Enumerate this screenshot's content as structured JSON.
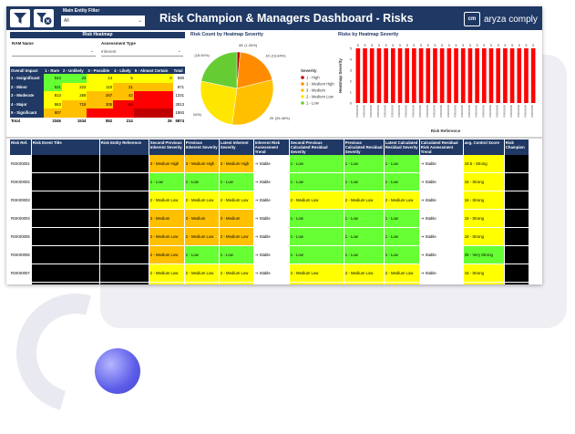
{
  "header": {
    "filter_label": "Main Entity Filter",
    "filter_value": "All",
    "title": "Risk Champion & Managers Dashboard - Risks",
    "logo_mark": "cm",
    "logo_text": "aryza comply"
  },
  "heatmap": {
    "section_title": "Risk Heatmap",
    "ram_label": "RAM Name",
    "assessment_label": "Assessment Type",
    "assessment_value": "Inherent",
    "columns": [
      "Overall Impact",
      "1 - Rare",
      "2 - Unlikely",
      "3 - Possible",
      "4 - Likely",
      "5 - Almost Certain",
      "Total"
    ],
    "rows": [
      {
        "label": "1 - Insignificant",
        "cells": [
          "543",
          "23",
          "14",
          "5",
          "0",
          "590"
        ],
        "colors": [
          "#66ff33",
          "#66ff33",
          "#ffff00",
          "#ffff00",
          "#ffff00",
          "#ffffff"
        ]
      },
      {
        "label": "2 - Minor",
        "cells": [
          "521",
          "223",
          "110",
          "21",
          "",
          "871"
        ],
        "colors": [
          "#66ff33",
          "#ffff00",
          "#ffff00",
          "#ffc000",
          "#ffc000",
          "#ffffff"
        ]
      },
      {
        "label": "3 - Moderate",
        "cells": [
          "813",
          "258",
          "267",
          "42",
          "",
          "1331"
        ],
        "colors": [
          "#ffff00",
          "#ffff00",
          "#ffc000",
          "#ffc000",
          "#ff0000",
          "#ffffff"
        ]
      },
      {
        "label": "4 - Major",
        "cells": [
          "863",
          "715",
          "305",
          "54",
          "",
          "2813"
        ],
        "colors": [
          "#ffff00",
          "#ffc000",
          "#ffc000",
          "#ff0000",
          "#ff0000",
          "#ffffff"
        ]
      },
      {
        "label": "5 - Significant",
        "cells": [
          "607",
          "",
          "",
          "",
          "",
          "1993"
        ],
        "colors": [
          "#ffc000",
          "#ffc000",
          "#ff0000",
          "#ff0000",
          "#c00000",
          "#ffffff"
        ]
      }
    ],
    "total": {
      "label": "Total",
      "cells": [
        "3346",
        "1534",
        "852",
        "214",
        "26",
        "5874"
      ]
    }
  },
  "pie": {
    "section_title": "Risk Count by Heatmap Severity",
    "legend_title": "Severity",
    "legend": [
      {
        "label": "1 - High",
        "color": "#c00000"
      },
      {
        "label": "2 - Medium High",
        "color": "#ff8c00"
      },
      {
        "label": "3 - Medium",
        "color": "#ffc000"
      },
      {
        "label": "2 - Medium Low",
        "color": "#ffe600"
      },
      {
        "label": "1 - Low",
        "color": "#66cc33"
      }
    ],
    "labels": [
      "8K (1.26%)",
      "1K (16.84%)",
      "2K (26.46%)",
      "2K (22.34%)",
      "1K (18.60%)"
    ]
  },
  "chart_data": {
    "type": "pie",
    "title": "Risk Count by Heatmap Severity",
    "legend_title": "Severity",
    "categories": [
      "1 - High",
      "2 - Medium High",
      "3 - Medium",
      "2 - Medium Low",
      "1 - Low"
    ],
    "values": [
      1.26,
      16.84,
      26.46,
      22.34,
      18.6
    ],
    "slice_labels": [
      "8K (1.26%)",
      "1K (16.84%)",
      "2K (26.46%)",
      "2K (22.34%)",
      "1K (18.60%)"
    ]
  },
  "bars": {
    "section_title": "Risks by Heatmap Severity",
    "ylabel": "Heatmap Severity",
    "xlabel": "Risk Reference",
    "value_label": "5",
    "count": 26,
    "category_label": "RSK00000",
    "color": "#ff0000",
    "tick_labels": [
      "5",
      "4",
      "3",
      "2",
      "1",
      "0"
    ]
  },
  "risk_table": {
    "columns": [
      "Risk Ref.",
      "Risk Event Title",
      "Risk Entity Reference",
      "Second Previous Inherent Severity",
      "Previous Inherent Severity",
      "Latest Inherent Severity",
      "Inherent Risk Assessment Trend",
      "Second Previous Calculated Residual Severity",
      "Previous Calculated Residual Severity",
      "Latest Calculated Residual Severity",
      "Calculated Residual Risk Assessment Trend",
      "avg. Control Score",
      "Risk Champion"
    ],
    "rows": [
      {
        "ref": "RSK00001",
        "cells": [
          "3 - Medium High",
          "3 - Medium High",
          "3 - Medium High",
          "Stable",
          "1 - Low",
          "1 - Low",
          "1 - Low",
          "Stable",
          "19.5 - Strong"
        ],
        "colors": [
          "c3",
          "c3",
          "c3",
          "",
          "c1",
          "c1",
          "c1",
          "",
          "cs"
        ]
      },
      {
        "ref": "RSK00002",
        "cells": [
          "1 - Low",
          "1 - Low",
          "1 - Low",
          "Stable",
          "1 - Low",
          "1 - Low",
          "1 - Low",
          "Stable",
          "16 - Strong"
        ],
        "colors": [
          "c1",
          "c1",
          "c1",
          "",
          "c1",
          "c1",
          "c1",
          "",
          "cs"
        ]
      },
      {
        "ref": "RSK00003",
        "cells": [
          "2 - Medium Low",
          "2 - Medium Low",
          "2 - Medium Low",
          "Stable",
          "2 - Medium Low",
          "2 - Medium Low",
          "2 - Medium Low",
          "Stable",
          "16 - Strong"
        ],
        "colors": [
          "c2",
          "c2",
          "c2",
          "",
          "c2",
          "c2",
          "c2",
          "",
          "cs"
        ]
      },
      {
        "ref": "RSK00004",
        "cells": [
          "3 - Medium",
          "3 - Medium",
          "3 - Medium",
          "Stable",
          "1 - Low",
          "1 - Low",
          "1 - Low",
          "Stable",
          "16 - Strong"
        ],
        "colors": [
          "c3",
          "c3",
          "c3",
          "",
          "c1",
          "c1",
          "c1",
          "",
          "cs"
        ]
      },
      {
        "ref": "RSK00005",
        "cells": [
          "2 - Medium Low",
          "2 - Medium Low",
          "2 - Medium Low",
          "Stable",
          "1 - Low",
          "1 - Low",
          "1 - Low",
          "Stable",
          "16 - Strong"
        ],
        "colors": [
          "c3",
          "c3",
          "c3",
          "",
          "c1",
          "c1",
          "c1",
          "",
          "cs"
        ]
      },
      {
        "ref": "RSK00006",
        "cells": [
          "2 - Medium Low",
          "1 - Low",
          "1 - Low",
          "Stable",
          "1 - Low",
          "1 - Low",
          "1 - Low",
          "Stable",
          "25 - Very Strong"
        ],
        "colors": [
          "c3",
          "c1",
          "c1",
          "",
          "c1",
          "c1",
          "c1",
          "",
          "cv"
        ]
      },
      {
        "ref": "RSK00007",
        "cells": [
          "2 - Medium Low",
          "2 - Medium Low",
          "2 - Medium Low",
          "Stable",
          "2 - Medium Low",
          "2 - Medium Low",
          "2 - Medium Low",
          "Stable",
          "16 - Strong"
        ],
        "colors": [
          "c2",
          "c2",
          "c2",
          "",
          "c2",
          "c2",
          "c2",
          "",
          "cs"
        ]
      },
      {
        "ref": "RSK00008",
        "cells": [
          "2 - Medium Low",
          "2 - Medium Low",
          "2 - Medium Low",
          "Stable",
          "2 - Medium Low",
          "2 - Medium Low",
          "2 - Medium Low",
          "Stable",
          "16 - Strong"
        ],
        "colors": [
          "c2",
          "c2",
          "c2",
          "",
          "c2",
          "c2",
          "c2",
          "",
          "cs"
        ]
      }
    ]
  }
}
